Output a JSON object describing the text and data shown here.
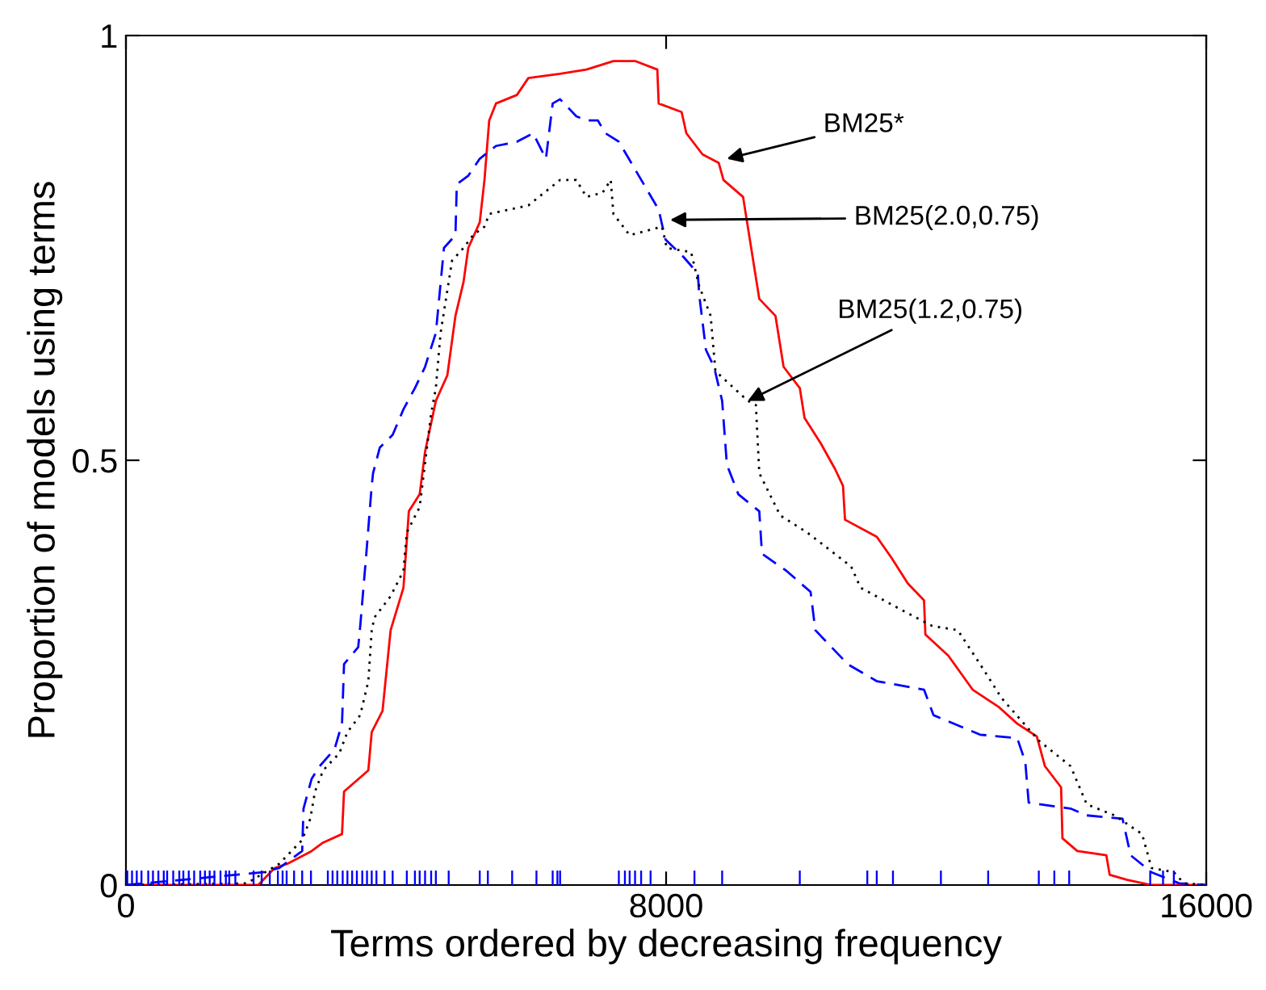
{
  "chart_data": {
    "type": "line",
    "xlabel": "Terms ordered by decreasing frequency",
    "ylabel": "Proportion of models using terms",
    "xlim": [
      0,
      16000
    ],
    "ylim": [
      0,
      1
    ],
    "xticks": [
      0,
      8000,
      16000
    ],
    "yticks": [
      0,
      {
        "value": 0.5,
        "label": "0.5"
      },
      1
    ],
    "grid": false,
    "legend": false,
    "series": [
      {
        "line_style": "solid",
        "color": "#ff0000",
        "x": [
          0,
          1960,
          2200,
          2390,
          2750,
          2920,
          3200,
          3230,
          3590,
          3640,
          3800,
          3920,
          4110,
          4190,
          4350,
          4430,
          4590,
          4760,
          4880,
          5000,
          5070,
          5240,
          5310,
          5380,
          5480,
          5790,
          5960,
          6430,
          6820,
          7220,
          7540,
          7870,
          7890,
          8230,
          8300,
          8540,
          8780,
          8850,
          9140,
          9380,
          9620,
          9740,
          9980,
          10050,
          10290,
          10500,
          10620,
          10650,
          11120,
          11340,
          11580,
          11820,
          11840,
          12180,
          12540,
          12920,
          13200,
          13490,
          13610,
          13850,
          13870,
          14090,
          14520,
          14570,
          14830,
          15190,
          16000
        ],
        "values": [
          0,
          0,
          0.02,
          0.025,
          0.04,
          0.05,
          0.06,
          0.11,
          0.135,
          0.18,
          0.205,
          0.3,
          0.35,
          0.44,
          0.46,
          0.51,
          0.57,
          0.6,
          0.67,
          0.71,
          0.75,
          0.78,
          0.83,
          0.9,
          0.92,
          0.93,
          0.95,
          0.955,
          0.96,
          0.97,
          0.97,
          0.96,
          0.92,
          0.91,
          0.885,
          0.86,
          0.85,
          0.83,
          0.81,
          0.69,
          0.67,
          0.61,
          0.585,
          0.55,
          0.52,
          0.49,
          0.47,
          0.43,
          0.41,
          0.385,
          0.355,
          0.335,
          0.295,
          0.27,
          0.23,
          0.21,
          0.19,
          0.175,
          0.14,
          0.115,
          0.055,
          0.04,
          0.035,
          0.012,
          0.006,
          0,
          0
        ]
      },
      {
        "line_style": "dashed",
        "color": "#0000ff",
        "x": [
          0,
          2030,
          2270,
          2610,
          2630,
          2750,
          2870,
          3090,
          3200,
          3230,
          3440,
          3470,
          3560,
          3640,
          3660,
          3760,
          3950,
          4110,
          4280,
          4430,
          4590,
          4710,
          4880,
          4900,
          5070,
          5240,
          5480,
          5790,
          6030,
          6220,
          6320,
          6430,
          6670,
          6820,
          6990,
          7100,
          7300,
          7890,
          7990,
          8250,
          8470,
          8490,
          8590,
          8710,
          8830,
          8900,
          9070,
          9380,
          9420,
          9780,
          10140,
          10210,
          10450,
          10690,
          11120,
          11820,
          11960,
          12650,
          13200,
          13320,
          13370,
          13990,
          14230,
          14760,
          14880,
          15190,
          15600,
          16000
        ],
        "values": [
          0,
          0.015,
          0.02,
          0.04,
          0.09,
          0.125,
          0.14,
          0.16,
          0.19,
          0.26,
          0.28,
          0.305,
          0.39,
          0.47,
          0.485,
          0.515,
          0.53,
          0.56,
          0.585,
          0.61,
          0.65,
          0.75,
          0.765,
          0.825,
          0.835,
          0.855,
          0.87,
          0.875,
          0.885,
          0.855,
          0.92,
          0.925,
          0.905,
          0.9,
          0.9,
          0.885,
          0.875,
          0.795,
          0.76,
          0.74,
          0.72,
          0.695,
          0.63,
          0.61,
          0.57,
          0.495,
          0.46,
          0.44,
          0.39,
          0.37,
          0.345,
          0.3,
          0.28,
          0.26,
          0.24,
          0.23,
          0.2,
          0.177,
          0.173,
          0.145,
          0.097,
          0.09,
          0.082,
          0.078,
          0.035,
          0.015,
          0.002,
          0
        ]
      },
      {
        "line_style": "dotted",
        "color": "#000000",
        "x": [
          0,
          1790,
          2270,
          2610,
          2730,
          2800,
          2920,
          3160,
          3280,
          3470,
          3590,
          3640,
          3680,
          3920,
          4110,
          4160,
          4350,
          4520,
          4590,
          4660,
          4760,
          4830,
          5000,
          5140,
          5310,
          5380,
          5960,
          6430,
          6670,
          6820,
          7060,
          7180,
          7220,
          7460,
          7940,
          8010,
          8370,
          8490,
          8660,
          8730,
          9210,
          9330,
          9380,
          9690,
          10090,
          10740,
          10880,
          11460,
          11940,
          12320,
          12650,
          12970,
          13520,
          13990,
          14230,
          14640,
          15050,
          15190,
          15520,
          15670,
          16000
        ],
        "values": [
          0,
          0.002,
          0.025,
          0.053,
          0.078,
          0.11,
          0.135,
          0.155,
          0.18,
          0.2,
          0.24,
          0.3,
          0.315,
          0.34,
          0.37,
          0.415,
          0.445,
          0.555,
          0.585,
          0.65,
          0.7,
          0.735,
          0.75,
          0.765,
          0.775,
          0.79,
          0.8,
          0.83,
          0.83,
          0.81,
          0.815,
          0.83,
          0.79,
          0.765,
          0.775,
          0.75,
          0.745,
          0.705,
          0.67,
          0.605,
          0.57,
          0.565,
          0.485,
          0.435,
          0.415,
          0.375,
          0.35,
          0.325,
          0.305,
          0.3,
          0.26,
          0.22,
          0.17,
          0.14,
          0.095,
          0.082,
          0.06,
          0.02,
          0.015,
          0.002,
          0
        ]
      },
      {
        "type": "bar",
        "color": "#0000ff",
        "x": [
          20,
          90,
          160,
          230,
          330,
          400,
          480,
          560,
          610,
          700,
          790,
          850,
          930,
          1010,
          1100,
          1170,
          1240,
          1310,
          1400,
          1480,
          1530,
          1620,
          1890,
          2010,
          2130,
          2250,
          2320,
          2380,
          2490,
          2610,
          2740,
          2990,
          3060,
          3130,
          3210,
          3280,
          3350,
          3420,
          3500,
          3570,
          3640,
          3710,
          3830,
          3950,
          4160,
          4280,
          4350,
          4430,
          4520,
          4590,
          4780,
          5240,
          5360,
          5720,
          6080,
          6320,
          6390,
          6430,
          7300,
          7390,
          7460,
          7540,
          7630,
          7770,
          8420,
          8830,
          9980,
          10980,
          11120,
          11360,
          12070,
          12770,
          13520,
          13750,
          13970,
          15170,
          15360,
          15520
        ],
        "values": [
          0.017,
          0.017,
          0.017,
          0.017,
          0.017,
          0.017,
          0.017,
          0.017,
          0.017,
          0.017,
          0.017,
          0.017,
          0.017,
          0.017,
          0.017,
          0.017,
          0.017,
          0.017,
          0.017,
          0.017,
          0.017,
          0.017,
          0.017,
          0.017,
          0.017,
          0.017,
          0.017,
          0.017,
          0.017,
          0.017,
          0.017,
          0.017,
          0.017,
          0.017,
          0.017,
          0.017,
          0.017,
          0.017,
          0.017,
          0.017,
          0.017,
          0.017,
          0.017,
          0.017,
          0.017,
          0.017,
          0.017,
          0.017,
          0.017,
          0.017,
          0.017,
          0.017,
          0.017,
          0.017,
          0.017,
          0.017,
          0.017,
          0.017,
          0.017,
          0.017,
          0.017,
          0.017,
          0.017,
          0.017,
          0.017,
          0.017,
          0.017,
          0.017,
          0.017,
          0.017,
          0.017,
          0.017,
          0.017,
          0.017,
          0.017,
          0.017,
          0.017,
          0.017
        ]
      }
    ],
    "annotations": [
      {
        "text": "BM25*",
        "x": 8900,
        "y": 0.855
      },
      {
        "text": "BM25(2.0,0.75)",
        "x": 8060,
        "y": 0.783
      },
      {
        "text": "BM25(1.2,0.75)",
        "x": 9210,
        "y": 0.57
      }
    ]
  }
}
